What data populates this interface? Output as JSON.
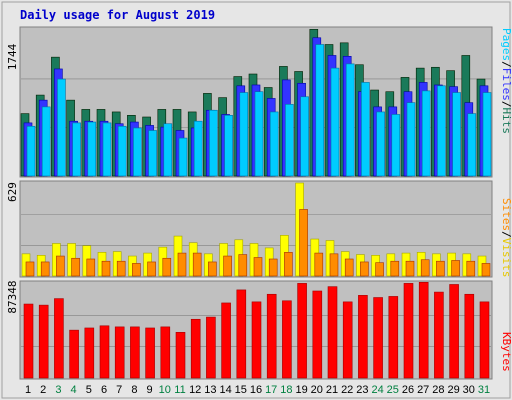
{
  "chart_data": [
    {
      "type": "bar",
      "panel": "top",
      "title": "Daily usage for August 2019",
      "ylabel_max": "1744",
      "ylim": [
        0,
        1744
      ],
      "categories": [
        "1",
        "2",
        "3",
        "4",
        "5",
        "6",
        "7",
        "8",
        "9",
        "10",
        "11",
        "12",
        "13",
        "14",
        "15",
        "16",
        "17",
        "18",
        "19",
        "20",
        "21",
        "22",
        "23",
        "24",
        "25",
        "26",
        "27",
        "28",
        "29",
        "30",
        "31"
      ],
      "weekend_days": [
        "3",
        "4",
        "10",
        "11",
        "17",
        "18",
        "24",
        "25",
        "31"
      ],
      "series": [
        {
          "name": "Hits",
          "color": "#1a7a5a",
          "values": [
            740,
            960,
            1410,
            900,
            790,
            790,
            760,
            720,
            700,
            790,
            790,
            760,
            980,
            930,
            1180,
            1210,
            1050,
            1300,
            1240,
            1740,
            1560,
            1580,
            1320,
            1020,
            1000,
            1170,
            1280,
            1290,
            1250,
            1430,
            1150
          ]
        },
        {
          "name": "Files",
          "color": "#3333ff",
          "values": [
            630,
            900,
            1270,
            650,
            650,
            650,
            620,
            640,
            600,
            580,
            540,
            570,
            780,
            730,
            1070,
            1080,
            920,
            1140,
            1100,
            1640,
            1430,
            1420,
            1000,
            820,
            820,
            1000,
            1110,
            1080,
            1060,
            870,
            1070
          ]
        },
        {
          "name": "Pages",
          "color": "#00ccff",
          "values": [
            590,
            820,
            1150,
            630,
            640,
            630,
            590,
            570,
            540,
            620,
            450,
            650,
            780,
            720,
            990,
            1000,
            760,
            850,
            940,
            1560,
            1280,
            1330,
            1110,
            760,
            730,
            870,
            1010,
            1070,
            990,
            740,
            990
          ]
        }
      ]
    },
    {
      "type": "bar",
      "panel": "middle",
      "ylabel_max": "629",
      "ylim": [
        0,
        629
      ],
      "series": [
        {
          "name": "Visits",
          "color": "#ffff00",
          "values": [
            150,
            140,
            220,
            220,
            205,
            160,
            165,
            135,
            155,
            195,
            270,
            225,
            150,
            220,
            245,
            220,
            190,
            275,
            629,
            250,
            240,
            165,
            145,
            140,
            150,
            155,
            160,
            150,
            155,
            150,
            135
          ]
        },
        {
          "name": "Sites",
          "color": "#ff8c00",
          "values": [
            95,
            95,
            135,
            120,
            115,
            100,
            100,
            85,
            95,
            120,
            155,
            155,
            95,
            135,
            145,
            125,
            115,
            160,
            450,
            155,
            150,
            115,
            95,
            90,
            100,
            100,
            110,
            100,
            105,
            100,
            85
          ]
        }
      ]
    },
    {
      "type": "bar",
      "panel": "bottom",
      "ylabel_max": "87348",
      "ylim": [
        0,
        87348
      ],
      "series": [
        {
          "name": "KBytes",
          "color": "#ff0000",
          "values": [
            68000,
            67000,
            73000,
            44000,
            46000,
            48000,
            47000,
            47000,
            46000,
            47000,
            42000,
            54000,
            56000,
            69000,
            81000,
            70000,
            77000,
            71000,
            87000,
            80000,
            84000,
            70000,
            76000,
            74000,
            75000,
            87000,
            88000,
            79000,
            86000,
            77000,
            70000
          ]
        }
      ]
    }
  ],
  "legend": {
    "top": [
      "Pages",
      "/",
      "Files",
      "/",
      "Hits"
    ],
    "middle": [
      "Sites",
      "/",
      "Visits"
    ],
    "bottom": [
      "KBytes"
    ]
  },
  "colors": {
    "panel_bg": "#c0c0c0",
    "frame": "#e0e0e0",
    "title": "#0000cc",
    "weekend_label": "#008040",
    "weekday_label": "#000000",
    "grid": "#808080"
  }
}
